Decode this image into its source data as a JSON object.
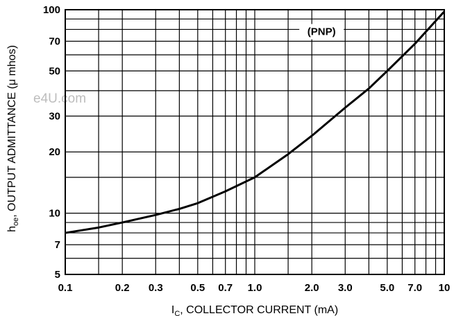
{
  "chart_data": {
    "type": "line",
    "title": "",
    "xlabel_main": "I",
    "xlabel_sub": "C",
    "xlabel_rest": ", COLLECTOR CURRENT (mA)",
    "ylabel_main": "h",
    "ylabel_sub": "oe",
    "ylabel_rest": ", OUTPUT ADMITTANCE (μ mhos)",
    "annotation": "(PNP)",
    "watermark": "e4U.com",
    "x_scale": "log",
    "y_scale": "log",
    "xlim": [
      0.1,
      10
    ],
    "ylim": [
      5,
      100
    ],
    "grid": true,
    "x_ticks": [
      {
        "v": 0.1,
        "label": "0.1"
      },
      {
        "v": 0.2,
        "label": "0.2"
      },
      {
        "v": 0.3,
        "label": "0.3"
      },
      {
        "v": 0.5,
        "label": "0.5"
      },
      {
        "v": 0.7,
        "label": "0.7"
      },
      {
        "v": 1.0,
        "label": "1.0"
      },
      {
        "v": 2.0,
        "label": "2.0"
      },
      {
        "v": 3.0,
        "label": "3.0"
      },
      {
        "v": 5.0,
        "label": "5.0"
      },
      {
        "v": 7.0,
        "label": "7.0"
      },
      {
        "v": 10,
        "label": "10"
      }
    ],
    "y_ticks": [
      {
        "v": 5,
        "label": "5"
      },
      {
        "v": 7,
        "label": "7"
      },
      {
        "v": 10,
        "label": "10"
      },
      {
        "v": 20,
        "label": "20"
      },
      {
        "v": 30,
        "label": "30"
      },
      {
        "v": 50,
        "label": "50"
      },
      {
        "v": 70,
        "label": "70"
      },
      {
        "v": 100,
        "label": "100"
      }
    ],
    "x_grid": [
      0.1,
      0.15,
      0.2,
      0.3,
      0.4,
      0.5,
      0.6,
      0.7,
      0.8,
      0.9,
      1,
      1.5,
      2,
      3,
      4,
      5,
      6,
      7,
      8,
      9,
      10
    ],
    "y_grid": [
      5,
      6,
      7,
      8,
      9,
      10,
      15,
      20,
      30,
      40,
      50,
      60,
      70,
      80,
      90,
      100
    ],
    "series": [
      {
        "x": [
          0.1,
          0.15,
          0.2,
          0.3,
          0.4,
          0.5,
          0.7,
          1.0,
          1.5,
          2.0,
          3.0,
          4.0,
          5.0,
          7.0,
          10
        ],
        "y": [
          8.0,
          8.5,
          9.0,
          9.8,
          10.5,
          11.2,
          12.8,
          15.0,
          19.5,
          24.0,
          33.0,
          41.0,
          50.0,
          68.0,
          98.0
        ]
      }
    ]
  }
}
